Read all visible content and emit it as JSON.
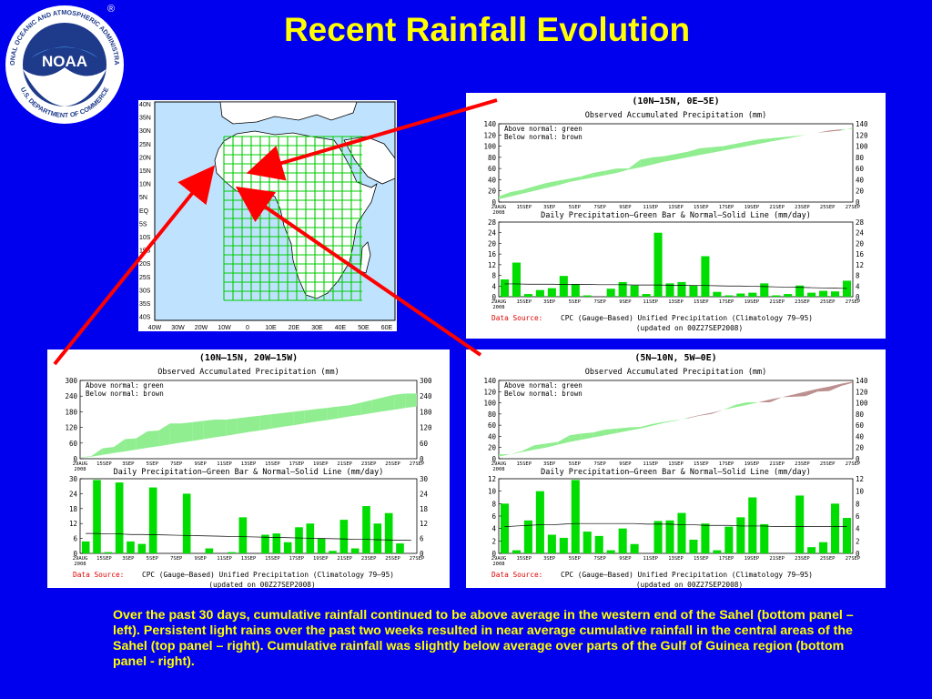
{
  "slide_title": "Recent Rainfall Evolution",
  "logo": {
    "center_text": "NOAA",
    "ring_text_top": "NATIONAL OCEANIC AND ATMOSPHERIC ADMINISTRATION",
    "ring_text_bottom": "U.S. DEPARTMENT OF COMMERCE",
    "registered": "®"
  },
  "colors": {
    "background": "#0000ee",
    "title": "#ffff00",
    "above_normal": "#90ee90",
    "below_normal": "#bc8f8f",
    "daily_bar": "#00dd00",
    "arrow": "#ff0000",
    "ocean": "#bfe3ff",
    "grid": "#00cc00"
  },
  "map": {
    "lat_labels": [
      "40N",
      "35N",
      "30N",
      "25N",
      "20N",
      "15N",
      "10N",
      "5N",
      "EQ",
      "5S",
      "10S",
      "15S",
      "20S",
      "25S",
      "30S",
      "35S",
      "40S"
    ],
    "lon_labels": [
      "40W",
      "30W",
      "20W",
      "10W",
      "0",
      "10E",
      "20E",
      "30E",
      "40E",
      "50E",
      "60E"
    ]
  },
  "caption": "Over the past 30 days, cumulative rainfall continued to be above average in the western end of the Sahel (bottom panel – left).  Persistent light rains over the past two weeks resulted in near average cumulative rainfall in the central areas of the Sahel (top panel – right).  Cumulative rainfall was slightly below average over parts of the Gulf of Guinea region (bottom panel - right).",
  "chart_data": [
    {
      "type": "area",
      "region": "(10N–15N, 0E–5E)",
      "top_title": "Observed Accumulated Precipitation (mm)",
      "legend_above": "Above normal: green",
      "legend_below": "Below normal: brown",
      "categories": [
        "29AUG 2008",
        "15SEP",
        "3SEP",
        "5SEP",
        "7SEP",
        "9SEP",
        "11SEP",
        "13SEP",
        "15SEP",
        "17SEP",
        "19SEP",
        "21SEP",
        "23SEP",
        "25SEP",
        "27SEP"
      ],
      "observed": [
        10,
        18,
        22,
        28,
        34,
        38,
        42,
        46,
        52,
        56,
        60,
        60,
        76,
        80,
        82,
        86,
        90,
        96,
        98,
        100,
        104,
        108,
        112,
        114,
        116,
        118,
        120,
        124,
        126,
        128,
        133
      ],
      "normal": [
        5,
        10,
        15,
        20,
        25,
        30,
        36,
        40,
        44,
        48,
        52,
        58,
        62,
        67,
        72,
        76,
        80,
        84,
        88,
        92,
        96,
        100,
        104,
        108,
        112,
        116,
        120,
        124,
        128,
        130,
        131
      ],
      "top_ylim": [
        0,
        140
      ],
      "top_yticks": [
        0,
        20,
        40,
        60,
        80,
        100,
        120,
        140
      ],
      "bottom_title": "Daily Precipitation–Green Bar & Normal–Solid Line (mm/day)",
      "daily": [
        6.5,
        12.8,
        1,
        2.5,
        3.2,
        7.8,
        4.8,
        0.5,
        0,
        3,
        5.5,
        4.2,
        1,
        24,
        5,
        5.5,
        4.2,
        15.2,
        1.8,
        0.5,
        1.2,
        1.5,
        5,
        0.5,
        1,
        4.2,
        1.5,
        2.2,
        2,
        6
      ],
      "daily_normal": [
        4.8,
        4.8,
        4.7,
        4.7,
        4.7,
        4.6,
        4.6,
        4.6,
        4.5,
        4.5,
        4.5,
        4.4,
        4.4,
        4.4,
        4.3,
        4.3,
        4.2,
        4.2,
        4.1,
        4,
        4,
        3.9,
        3.8,
        3.7,
        3.6,
        3.5,
        3.4,
        3.3,
        3.2,
        3.1
      ],
      "bottom_ylim": [
        0,
        28
      ],
      "bottom_yticks": [
        0,
        4,
        8,
        12,
        16,
        20,
        24,
        28
      ],
      "data_source_label": "Data Source:",
      "data_source": "CPC (Gauge–Based) Unified Precipitation (Climatology 79–95)",
      "updated": "(updated on 00Z27SEP2008)"
    },
    {
      "type": "area",
      "region": "(10N–15N, 20W–15W)",
      "top_title": "Observed Accumulated Precipitation (mm)",
      "legend_above": "Above normal: green",
      "legend_below": "Below normal: brown",
      "categories": [
        "29AUG 2008",
        "15SEP",
        "3SEP",
        "5SEP",
        "7SEP",
        "9SEP",
        "11SEP",
        "13SEP",
        "15SEP",
        "17SEP",
        "19SEP",
        "21SEP",
        "23SEP",
        "25SEP",
        "27SEP"
      ],
      "observed": [
        5,
        10,
        40,
        45,
        75,
        78,
        105,
        108,
        135,
        135,
        140,
        145,
        150,
        150,
        155,
        160,
        165,
        170,
        175,
        180,
        185,
        190,
        195,
        200,
        205,
        215,
        225,
        235,
        245,
        250,
        250
      ],
      "normal": [
        3,
        8,
        15,
        22,
        28,
        35,
        42,
        48,
        55,
        62,
        68,
        75,
        82,
        88,
        95,
        102,
        108,
        115,
        122,
        128,
        135,
        142,
        148,
        155,
        162,
        168,
        175,
        182,
        188,
        195,
        200
      ],
      "top_ylim": [
        0,
        300
      ],
      "top_yticks": [
        0,
        60,
        120,
        180,
        240,
        300
      ],
      "bottom_title": "Daily Precipitation–Green Bar & Normal–Solid Line (mm/day)",
      "daily": [
        4.8,
        29.5,
        0.5,
        28.5,
        4.8,
        3.8,
        26.5,
        0,
        0,
        24,
        0,
        2,
        0,
        0.5,
        14.5,
        0,
        7.5,
        8,
        4.5,
        10.5,
        12,
        6,
        1,
        13.5,
        2,
        19,
        12,
        16.2,
        4,
        0
      ],
      "daily_normal": [
        8,
        8,
        7.8,
        7.8,
        7.6,
        7.6,
        7.5,
        7.4,
        7.3,
        7.2,
        7.1,
        7,
        6.9,
        6.8,
        6.7,
        6.6,
        6.5,
        6.4,
        6.3,
        6.2,
        6.1,
        6,
        5.9,
        5.8,
        5.7,
        5.6,
        5.5,
        5.4,
        5.3,
        5.2
      ],
      "bottom_ylim": [
        0,
        30
      ],
      "bottom_yticks": [
        0,
        6,
        12,
        18,
        24,
        30
      ],
      "data_source_label": "Data Source:",
      "data_source": "CPC (Gauge–Based) Unified Precipitation (Climatology 79–95)",
      "updated": "(updated on 00Z27SEP2008)"
    },
    {
      "type": "area",
      "region": "(5N–10N, 5W–0E)",
      "top_title": "Observed Accumulated Precipitation (mm)",
      "legend_above": "Above normal: green",
      "legend_below": "Below normal: brown",
      "categories": [
        "29AUG 2008",
        "15SEP",
        "3SEP",
        "5SEP",
        "7SEP",
        "9SEP",
        "11SEP",
        "13SEP",
        "15SEP",
        "17SEP",
        "19SEP",
        "21SEP",
        "23SEP",
        "25SEP",
        "27SEP"
      ],
      "observed": [
        8,
        8,
        14,
        24,
        27,
        30,
        42,
        45,
        47,
        52,
        54,
        56,
        57,
        62,
        66,
        69,
        72,
        77,
        80,
        87,
        96,
        101,
        101,
        101,
        110,
        111,
        112,
        120,
        121,
        130,
        136
      ],
      "normal": [
        4,
        8,
        12,
        16,
        20,
        25,
        30,
        34,
        38,
        42,
        46,
        50,
        54,
        59,
        64,
        68,
        73,
        78,
        82,
        87,
        92,
        96,
        101,
        106,
        110,
        115,
        120,
        125,
        129,
        134,
        138
      ],
      "top_ylim": [
        0,
        140
      ],
      "top_yticks": [
        0,
        20,
        40,
        60,
        80,
        100,
        120,
        140
      ],
      "bottom_title": "Daily Precipitation–Green Bar & Normal–Solid Line (mm/day)",
      "daily": [
        8,
        0.5,
        5.3,
        10,
        3,
        2.5,
        11.8,
        3.5,
        2.8,
        0.5,
        4,
        1.5,
        0,
        5.2,
        5.3,
        6.5,
        2.2,
        4.8,
        0.5,
        4.3,
        5.8,
        9,
        4.7,
        0,
        0,
        9.3,
        1,
        1.8,
        8,
        5.7
      ],
      "daily_normal": [
        4.3,
        4.4,
        4.5,
        4.6,
        4.6,
        4.7,
        4.8,
        4.8,
        4.8,
        4.8,
        4.8,
        4.8,
        4.7,
        4.7,
        4.7,
        4.6,
        4.6,
        4.5,
        4.5,
        4.5,
        4.4,
        4.4,
        4.4,
        4.3,
        4.3,
        4.3,
        4.3,
        4.3,
        4.3,
        4.3
      ],
      "bottom_ylim": [
        0,
        12
      ],
      "bottom_yticks": [
        0,
        2,
        4,
        6,
        8,
        10,
        12
      ],
      "data_source_label": "Data Source:",
      "data_source": "CPC (Gauge–Based) Unified Precipitation (Climatology 79–95)",
      "updated": "(updated on 00Z27SEP2008)"
    }
  ]
}
